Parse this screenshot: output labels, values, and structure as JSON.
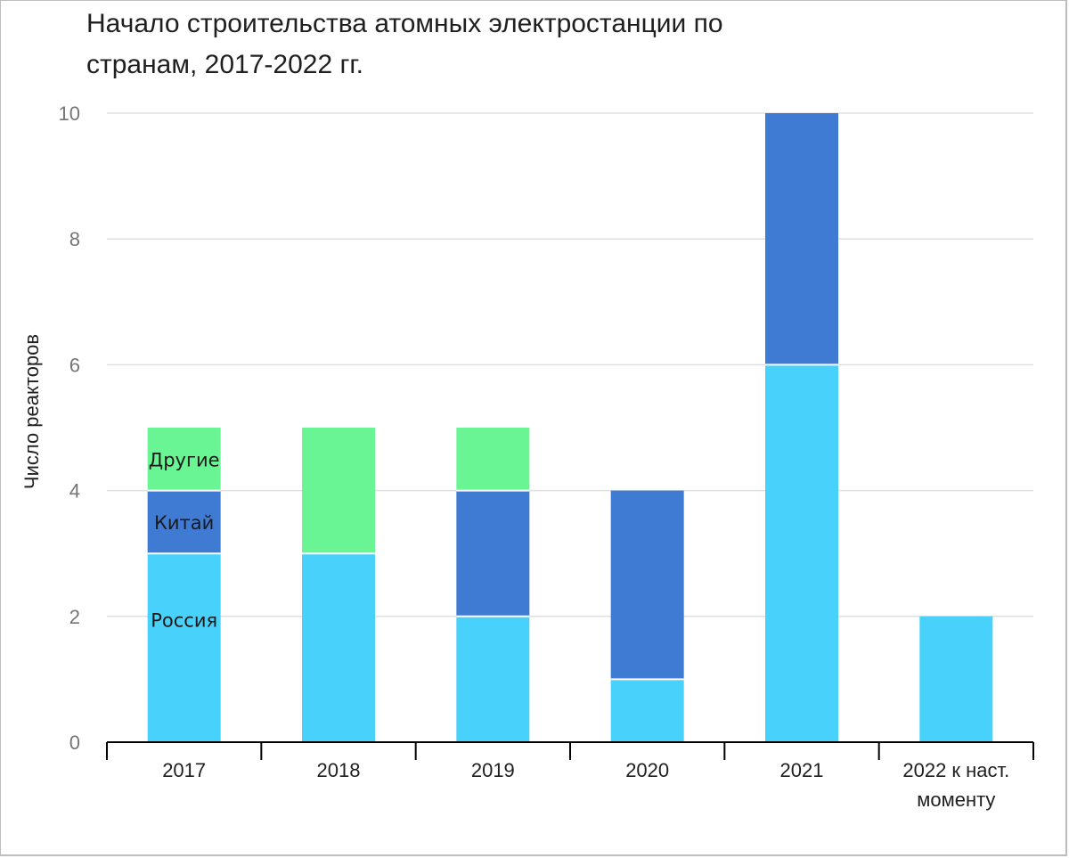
{
  "chart_data": {
    "type": "bar",
    "stacked": true,
    "title": "Начало строительства атомных электростанции по странам, 2017-2022 гг.",
    "title_lines": [
      "Начало строительства атомных электростанции по",
      "странам, 2017-2022 гг."
    ],
    "xlabel": "",
    "ylabel": "Число реакторов",
    "ylim": [
      0,
      10
    ],
    "yticks": [
      "0",
      "2",
      "4",
      "6",
      "8",
      "10"
    ],
    "grid": true,
    "categories": [
      "2017",
      "2018",
      "2019",
      "2020",
      "2021",
      "2022 к наст. моменту"
    ],
    "category_lines": [
      [
        "2017"
      ],
      [
        "2018"
      ],
      [
        "2019"
      ],
      [
        "2020"
      ],
      [
        "2021"
      ],
      [
        "2022 к наст.",
        "моменту"
      ]
    ],
    "series": [
      {
        "name": "Россия",
        "color": "#48d1fb",
        "values": [
          3,
          3,
          2,
          1,
          6,
          2
        ]
      },
      {
        "name": "Китай",
        "color": "#3f7ad3",
        "values": [
          1,
          0,
          2,
          3,
          4,
          0
        ]
      },
      {
        "name": "Другие",
        "color": "#6af594",
        "values": [
          1,
          2,
          1,
          0,
          0,
          0
        ]
      }
    ],
    "annotations": [
      {
        "text": "Россия",
        "category_index": 0,
        "series_index": 0
      },
      {
        "text": "Китай",
        "category_index": 0,
        "series_index": 1
      },
      {
        "text": "Другие",
        "category_index": 0,
        "series_index": 2
      }
    ]
  }
}
